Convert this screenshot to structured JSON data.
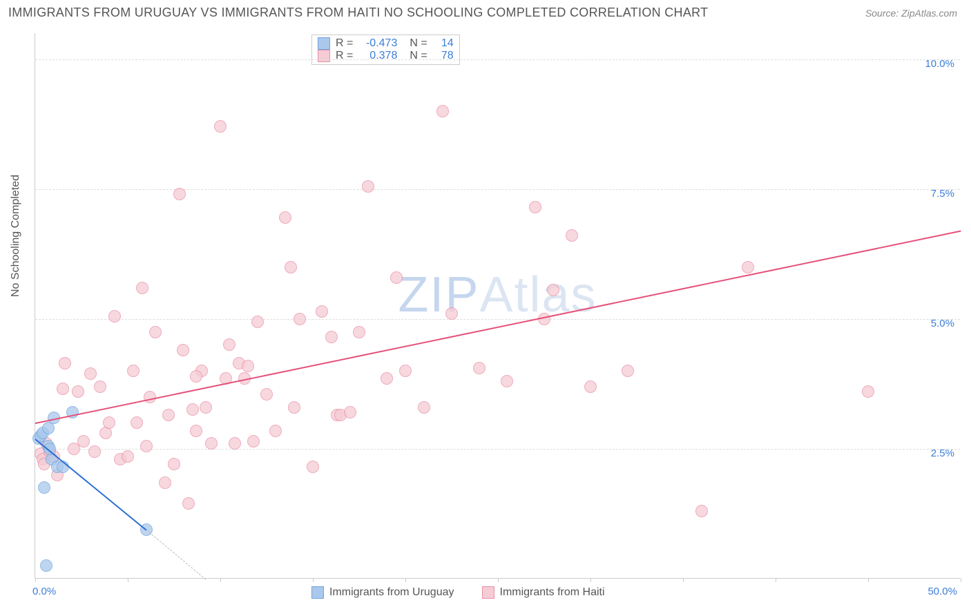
{
  "header": {
    "title": "IMMIGRANTS FROM URUGUAY VS IMMIGRANTS FROM HAITI NO SCHOOLING COMPLETED CORRELATION CHART",
    "source": "Source: ZipAtlas.com"
  },
  "axis": {
    "y_title": "No Schooling Completed",
    "x_min": 0.0,
    "x_max": 50.0,
    "y_min": 0.0,
    "y_max": 10.5,
    "y_ticks": [
      2.5,
      5.0,
      7.5,
      10.0
    ],
    "y_tick_labels": [
      "2.5%",
      "5.0%",
      "7.5%",
      "10.0%"
    ],
    "x_ticks": [
      0.0,
      5.0,
      10.0,
      15.0,
      20.0,
      25.0,
      30.0,
      35.0,
      40.0,
      45.0,
      50.0
    ],
    "x_start_label": "0.0%",
    "x_end_label": "50.0%",
    "label_color": "#3b7dd8",
    "grid_color": "#dddddd",
    "axis_color": "#cccccc"
  },
  "watermark": {
    "zip": "ZIP",
    "atlas": "Atlas"
  },
  "series": {
    "uruguay": {
      "label": "Immigrants from Uruguay",
      "color_fill": "#a9c8ec",
      "color_stroke": "#6fa3dd",
      "line_color": "#2b6fd1",
      "marker_radius": 9,
      "R": "-0.473",
      "N": "14",
      "trend": {
        "x1": 0.0,
        "y1": 2.7,
        "x2": 6.0,
        "y2": 0.95
      },
      "trend_dash": {
        "x1": 6.0,
        "y1": 0.95,
        "x2": 9.2,
        "y2": 0.0
      },
      "points": [
        [
          0.2,
          2.7
        ],
        [
          0.3,
          2.75
        ],
        [
          0.4,
          2.8
        ],
        [
          0.7,
          2.55
        ],
        [
          0.7,
          2.9
        ],
        [
          1.0,
          3.1
        ],
        [
          0.9,
          2.3
        ],
        [
          1.2,
          2.15
        ],
        [
          1.5,
          2.15
        ],
        [
          0.5,
          1.75
        ],
        [
          0.6,
          0.25
        ],
        [
          2.0,
          3.2
        ],
        [
          6.0,
          0.95
        ],
        [
          0.8,
          2.5
        ]
      ]
    },
    "haiti": {
      "label": "Immigrants from Haiti",
      "color_fill": "#f5cbd4",
      "color_stroke": "#e98fa7",
      "line_color": "#e5517a",
      "marker_radius": 9,
      "R": "0.378",
      "N": "78",
      "trend": {
        "x1": 0.0,
        "y1": 3.0,
        "x2": 50.0,
        "y2": 6.7
      },
      "points": [
        [
          0.3,
          2.4
        ],
        [
          0.4,
          2.3
        ],
        [
          0.5,
          2.2
        ],
        [
          0.6,
          2.6
        ],
        [
          0.8,
          2.45
        ],
        [
          1.0,
          2.35
        ],
        [
          1.2,
          2.0
        ],
        [
          1.5,
          3.65
        ],
        [
          1.6,
          4.15
        ],
        [
          2.1,
          2.5
        ],
        [
          2.3,
          3.6
        ],
        [
          2.6,
          2.65
        ],
        [
          3.0,
          3.95
        ],
        [
          3.2,
          2.45
        ],
        [
          3.5,
          3.7
        ],
        [
          3.8,
          2.8
        ],
        [
          4.0,
          3.0
        ],
        [
          4.3,
          5.05
        ],
        [
          4.6,
          2.3
        ],
        [
          5.0,
          2.35
        ],
        [
          5.3,
          4.0
        ],
        [
          5.5,
          3.0
        ],
        [
          5.8,
          5.6
        ],
        [
          6.0,
          2.55
        ],
        [
          6.5,
          4.75
        ],
        [
          7.0,
          1.85
        ],
        [
          7.2,
          3.15
        ],
        [
          7.5,
          2.2
        ],
        [
          7.8,
          7.4
        ],
        [
          8.0,
          4.4
        ],
        [
          8.3,
          1.45
        ],
        [
          8.5,
          3.25
        ],
        [
          8.7,
          2.85
        ],
        [
          9.0,
          4.0
        ],
        [
          9.2,
          3.3
        ],
        [
          9.5,
          2.6
        ],
        [
          10.0,
          8.7
        ],
        [
          10.3,
          3.85
        ],
        [
          10.5,
          4.5
        ],
        [
          10.8,
          2.6
        ],
        [
          11.0,
          4.15
        ],
        [
          11.3,
          3.85
        ],
        [
          11.5,
          4.1
        ],
        [
          11.8,
          2.65
        ],
        [
          12.0,
          4.95
        ],
        [
          12.5,
          3.55
        ],
        [
          13.0,
          2.85
        ],
        [
          13.5,
          6.95
        ],
        [
          13.8,
          6.0
        ],
        [
          14.0,
          3.3
        ],
        [
          14.3,
          5.0
        ],
        [
          15.0,
          2.15
        ],
        [
          15.5,
          5.15
        ],
        [
          16.0,
          4.65
        ],
        [
          16.3,
          3.15
        ],
        [
          16.5,
          3.15
        ],
        [
          17.0,
          3.2
        ],
        [
          17.5,
          4.75
        ],
        [
          18.0,
          7.55
        ],
        [
          19.0,
          3.85
        ],
        [
          19.5,
          5.8
        ],
        [
          20.0,
          4.0
        ],
        [
          21.0,
          3.3
        ],
        [
          22.0,
          9.0
        ],
        [
          22.5,
          5.1
        ],
        [
          24.0,
          4.05
        ],
        [
          25.5,
          3.8
        ],
        [
          27.0,
          7.15
        ],
        [
          27.5,
          5.0
        ],
        [
          28.0,
          5.55
        ],
        [
          29.0,
          6.6
        ],
        [
          30.0,
          3.7
        ],
        [
          32.0,
          4.0
        ],
        [
          36.0,
          1.3
        ],
        [
          38.5,
          6.0
        ],
        [
          45.0,
          3.6
        ],
        [
          8.7,
          3.9
        ],
        [
          6.2,
          3.5
        ]
      ]
    }
  },
  "stat_box": {
    "R_label": "R =",
    "N_label": "N ="
  }
}
